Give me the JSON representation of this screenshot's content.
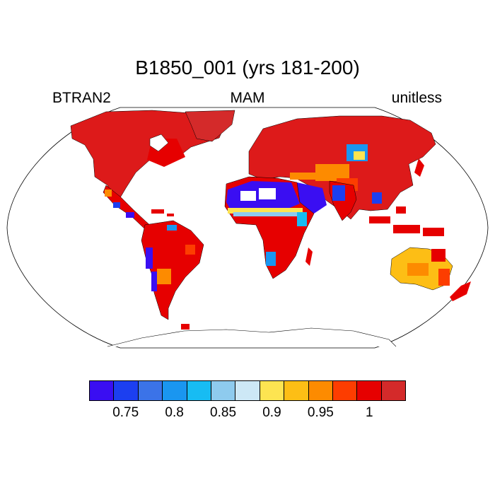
{
  "title": "B1850_001 (yrs 181-200)",
  "left_label": "BTRAN2",
  "center_label": "MAM",
  "right_label": "unitless",
  "projection": "Robinson",
  "colorbar": {
    "colors": [
      "#3a0ef2",
      "#1c3ff0",
      "#3b73e8",
      "#1a96f0",
      "#17bcf3",
      "#8ecbee",
      "#cde8f6",
      "#fde451",
      "#fdbe15",
      "#fd8b00",
      "#fd3d00",
      "#e60000",
      "#d42a2a"
    ],
    "tick_labels": [
      "0.75",
      "0.8",
      "0.85",
      "0.9",
      "0.95",
      "1"
    ],
    "tick_positions": [
      1.5,
      3.5,
      5.5,
      7.5,
      9.5,
      11.5
    ]
  }
}
